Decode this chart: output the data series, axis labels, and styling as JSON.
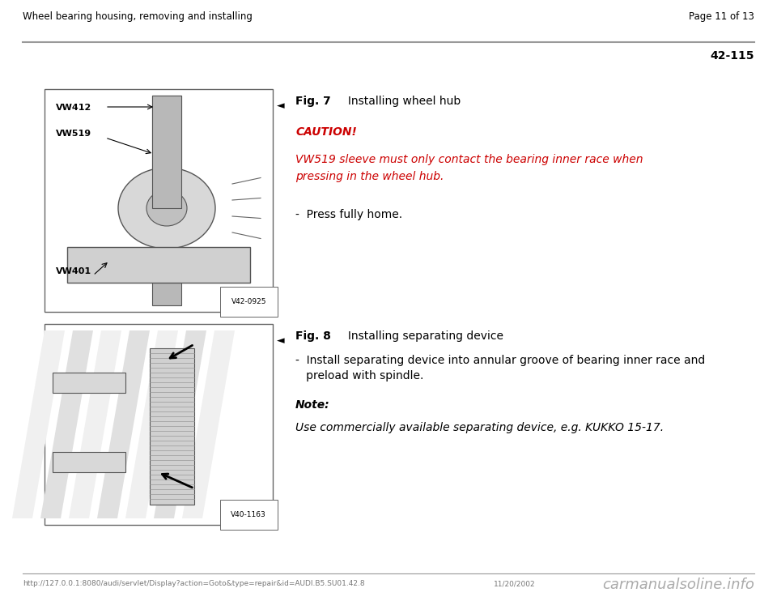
{
  "bg_color": "#ffffff",
  "header_left": "Wheel bearing housing, removing and installing",
  "header_right": "Page 11 of 13",
  "section_number": "42-115",
  "header_line_color": "#aaaaaa",
  "fig1": {
    "label": "V42-0925",
    "arrow_symbol": "◄",
    "title_bold": "Fig. 7",
    "title_rest": "     Installing wheel hub",
    "caution_header": "CAUTION!",
    "caution_text": "VW519 sleeve must only contact the bearing inner race when\npressing in the wheel hub.",
    "bullet": "-  Press fully home."
  },
  "fig2": {
    "label": "V40-1163",
    "arrow_symbol": "◄",
    "title_bold": "Fig. 8",
    "title_rest": "     Installing separating device",
    "bullet1": "-  Install separating device into annular groove of bearing inner race and",
    "bullet2": "   preload with spindle.",
    "note_header": "Note:",
    "note_text": "Use commercially available separating device, e.g. KUKKO 15-17."
  },
  "footer_url": "http://127.0.0.1:8080/audi/servlet/Display?action=Goto&type=repair&id=AUDI.B5.SU01.42.8",
  "footer_date": "11/20/2002",
  "footer_brand": "carmanualsoline.info",
  "red_color": "#cc0000",
  "black_color": "#000000",
  "gray_color": "#777777",
  "line_color": "#999999",
  "img_border_color": "#666666",
  "img_bg_color": "#ffffff"
}
